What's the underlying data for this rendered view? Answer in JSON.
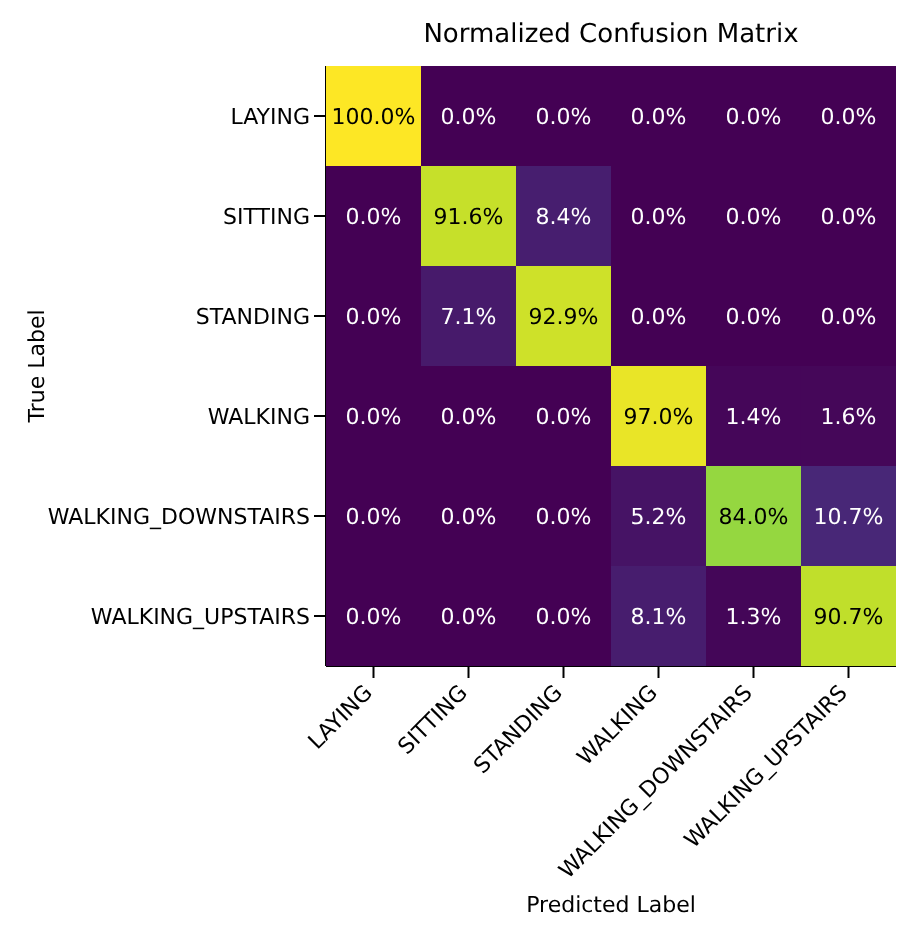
{
  "chart_data": {
    "type": "heatmap",
    "title": "Normalized Confusion Matrix",
    "xlabel": "Predicted Label",
    "ylabel": "True Label",
    "categories": [
      "LAYING",
      "SITTING",
      "STANDING",
      "WALKING",
      "WALKING_DOWNSTAIRS",
      "WALKING_UPSTAIRS"
    ],
    "y_categories": [
      "LAYING",
      "SITTING",
      "STANDING",
      "WALKING",
      "WALKING_DOWNSTAIRS",
      "WALKING_UPSTAIRS"
    ],
    "cells": [
      [
        100.0,
        0.0,
        0.0,
        0.0,
        0.0,
        0.0
      ],
      [
        0.0,
        91.6,
        8.4,
        0.0,
        0.0,
        0.0
      ],
      [
        0.0,
        7.1,
        92.9,
        0.0,
        0.0,
        0.0
      ],
      [
        0.0,
        0.0,
        0.0,
        97.0,
        1.4,
        1.6
      ],
      [
        0.0,
        0.0,
        0.0,
        5.2,
        84.0,
        10.7
      ],
      [
        0.0,
        0.0,
        0.0,
        8.1,
        1.3,
        90.7
      ]
    ],
    "cell_labels": [
      [
        "100.0%",
        "0.0%",
        "0.0%",
        "0.0%",
        "0.0%",
        "0.0%"
      ],
      [
        "0.0%",
        "91.6%",
        "8.4%",
        "0.0%",
        "0.0%",
        "0.0%"
      ],
      [
        "0.0%",
        "7.1%",
        "92.9%",
        "0.0%",
        "0.0%",
        "0.0%"
      ],
      [
        "0.0%",
        "0.0%",
        "0.0%",
        "97.0%",
        "1.4%",
        "1.6%"
      ],
      [
        "0.0%",
        "0.0%",
        "0.0%",
        "5.2%",
        "84.0%",
        "10.7%"
      ],
      [
        "0.0%",
        "0.0%",
        "0.0%",
        "8.1%",
        "1.3%",
        "90.7%"
      ]
    ]
  }
}
